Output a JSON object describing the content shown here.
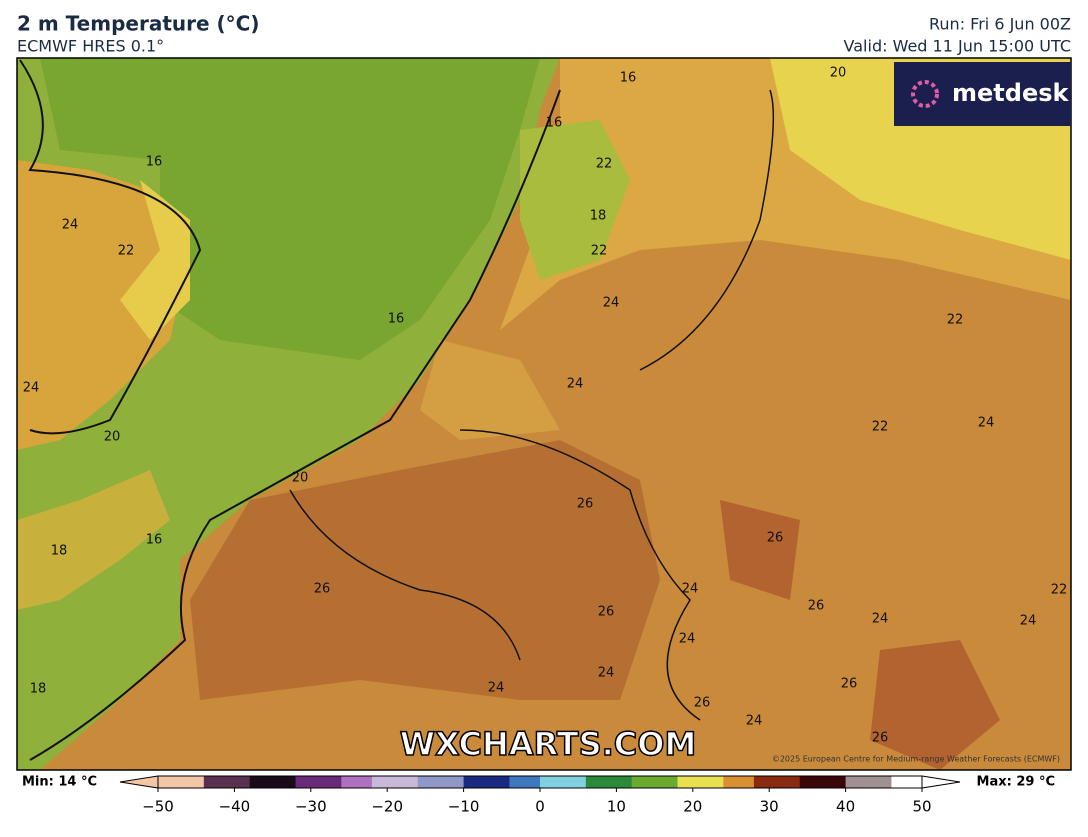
{
  "header": {
    "title": "2 m Temperature (°C)",
    "subtitle": "ECMWF HRES 0.1°",
    "run": "Run: Fri 6 Jun 00Z",
    "valid": "Valid: Wed 11 Jun 15:00 UTC"
  },
  "logo": "metdesk",
  "watermark": "WXCHARTS.COM",
  "copyright": "©2025 European Centre for Medium-range Weather Forecasts (ECMWF)",
  "contour_labels": [
    16,
    16,
    22,
    18,
    22,
    24,
    16,
    24,
    22,
    16,
    24,
    20,
    24,
    22,
    22,
    24,
    20,
    26,
    26,
    18,
    16,
    26,
    24,
    26,
    26,
    24,
    22,
    24,
    24,
    24,
    24,
    26,
    26,
    24,
    26,
    18,
    20
  ],
  "colorbar": {
    "min_label": "Min: 14 °C",
    "max_label": "Max: 29 °C",
    "ticks": [
      {
        "value": -50,
        "label": "−50"
      },
      {
        "value": -40,
        "label": "−40"
      },
      {
        "value": -30,
        "label": "−30"
      },
      {
        "value": -20,
        "label": "−20"
      },
      {
        "value": -10,
        "label": "−10"
      },
      0,
      10,
      20,
      30,
      40,
      50
    ]
  }
}
